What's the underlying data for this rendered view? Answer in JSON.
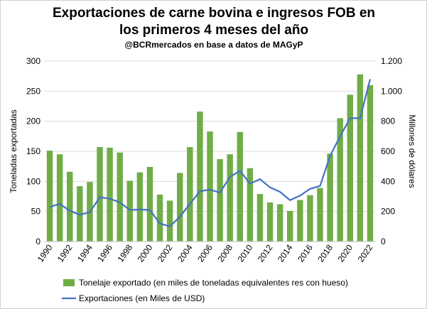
{
  "chart_data": {
    "type": "bar-line",
    "title": "Exportaciones de carne bovina e ingresos FOB en los primeros 4 meses del año",
    "subtitle": "@BCRmercados en base a datos de MAGyP",
    "y_label": "Toneladas exportadas",
    "y2_label": "Millones de dólares",
    "categories": [
      "1990",
      null,
      "1992",
      null,
      "1994",
      null,
      "1996",
      null,
      "1998",
      null,
      "2000",
      null,
      "2002",
      null,
      "2004",
      null,
      "2006",
      null,
      "2008",
      null,
      "2010",
      null,
      "2012",
      null,
      "2014",
      null,
      "2016",
      null,
      "2018",
      null,
      "2020",
      null,
      "2022"
    ],
    "series": [
      {
        "name": "Tonelaje exportado (en miles de toneladas equivalentes res con hueso)",
        "color": "#70ad47",
        "kind": "bar",
        "values": [
          151,
          145,
          116,
          92,
          99,
          157,
          156,
          148,
          101,
          115,
          124,
          78,
          68,
          114,
          157,
          216,
          183,
          137,
          145,
          182,
          122,
          79,
          65,
          62,
          51,
          69,
          77,
          89,
          146,
          205,
          244,
          278,
          260
        ]
      },
      {
        "name": "Exportaciones (en Miles de USD)",
        "color": "#4472c4",
        "kind": "line",
        "axis": "y2",
        "values": [
          230,
          250,
          205,
          178,
          195,
          295,
          285,
          260,
          210,
          213,
          210,
          120,
          100,
          165,
          250,
          335,
          345,
          325,
          430,
          470,
          385,
          415,
          360,
          330,
          275,
          305,
          350,
          370,
          570,
          700,
          820,
          820,
          1080
        ]
      }
    ],
    "ylim": [
      0,
      300
    ],
    "yticks": [
      0,
      50,
      100,
      150,
      200,
      250,
      300
    ],
    "y2lim": [
      0,
      1200
    ],
    "y2ticks": [
      0,
      200,
      400,
      600,
      800,
      {
        "value": 1000,
        "label": "1.000"
      },
      {
        "value": 1200,
        "label": "1.200"
      }
    ],
    "grid": true,
    "legend": "bottom"
  }
}
